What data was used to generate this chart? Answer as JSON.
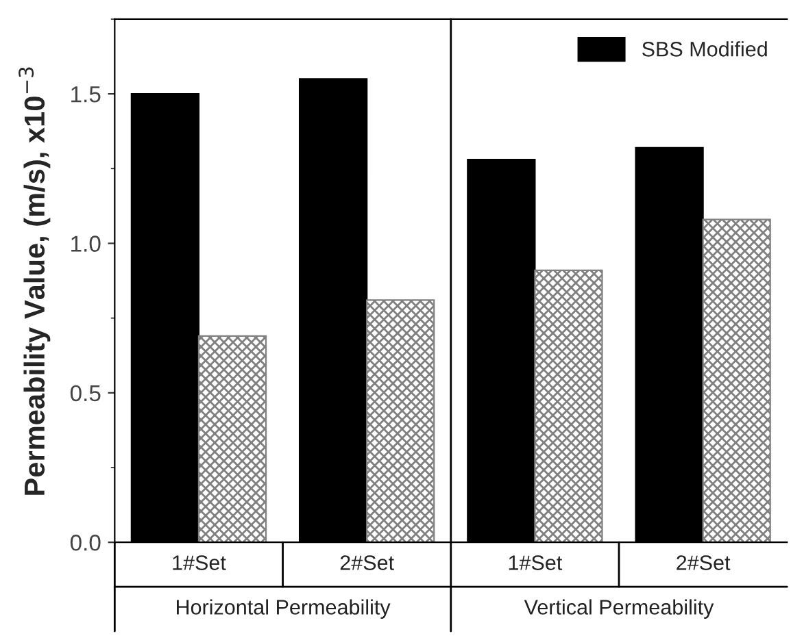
{
  "chart_data": {
    "type": "bar",
    "ylabel": "Permeability Value, (m/s), x10$^{−3}$",
    "categories": [
      "1#Set",
      "2#Set",
      "1#Set",
      "2#Set"
    ],
    "series": [
      {
        "name": "SBS Modified",
        "color": "#000000",
        "values": [
          1.5,
          1.55,
          1.28,
          1.32
        ]
      },
      {
        "color": "#808080",
        "values": [
          0.69,
          0.81,
          0.91,
          1.08
        ]
      }
    ],
    "ylim": [
      0,
      1.75
    ],
    "yticks": [
      {
        "value": 0,
        "label": "0.0"
      },
      0.5,
      {
        "value": 1,
        "label": "1.0"
      },
      1.5
    ],
    "annotations": [
      "Horizontal Permeability",
      "Vertical Permeability"
    ],
    "legend": "top right",
    "grid": false
  }
}
